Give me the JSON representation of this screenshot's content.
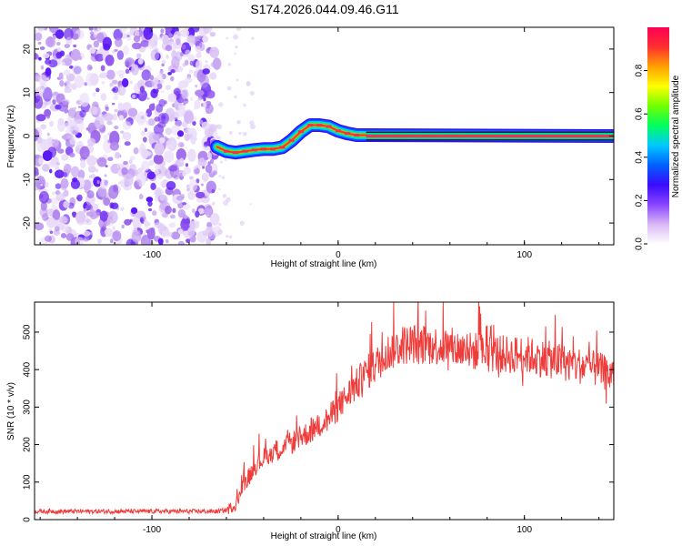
{
  "title": "S174.2026.044.09.46.G11",
  "chart_data": [
    {
      "type": "heatmap",
      "name": "spectrogram",
      "xlabel": "Height of straight line (km)",
      "ylabel": "Frequency (Hz)",
      "xlim": [
        -163,
        148
      ],
      "ylim": [
        -25,
        25
      ],
      "xticks": [
        -100,
        0,
        100
      ],
      "yticks": [
        -20,
        -10,
        0,
        10,
        20
      ],
      "noise_region_x": [
        -163,
        -65
      ],
      "ridge": {
        "x": [
          -65,
          -60,
          -55,
          -50,
          -45,
          -40,
          -35,
          -30,
          -25,
          -20,
          -15,
          -10,
          -5,
          0,
          5,
          10,
          15,
          148
        ],
        "y": [
          -2.5,
          -3.5,
          -3.8,
          -3.5,
          -3.2,
          -3.0,
          -3.0,
          -2.6,
          -1.0,
          1.0,
          2.5,
          2.5,
          2.2,
          1.2,
          0.6,
          0.2,
          0.2,
          0.0
        ]
      },
      "colorbar": {
        "label": "Normalized spectral amplitude",
        "range": [
          0.0,
          1.0
        ],
        "ticks": [
          "0.0",
          "0.2",
          "0.4",
          "0.6",
          "0.8"
        ],
        "colors": [
          "#ffffff",
          "#d9b7f5",
          "#8844ff",
          "#3a0bff",
          "#0060ff",
          "#00c8ff",
          "#00ff60",
          "#70ff00",
          "#ffff00",
          "#ffa000",
          "#ff3030",
          "#ff0055"
        ]
      }
    },
    {
      "type": "line",
      "name": "snr",
      "xlabel": "Height of straight line (km)",
      "ylabel": "SNR (10 * v/v)",
      "xlim": [
        -163,
        148
      ],
      "ylim": [
        0,
        580
      ],
      "xticks": [
        -100,
        0,
        100
      ],
      "yticks": [
        0,
        100,
        200,
        300,
        400,
        500
      ],
      "color": "#ef3b39",
      "series": [
        {
          "name": "SNR",
          "x": [
            -163,
            -140,
            -120,
            -100,
            -80,
            -65,
            -60,
            -55,
            -50,
            -45,
            -40,
            -35,
            -30,
            -25,
            -20,
            -15,
            -10,
            -5,
            0,
            5,
            10,
            15,
            20,
            25,
            30,
            35,
            40,
            50,
            60,
            70,
            80,
            90,
            100,
            110,
            120,
            130,
            140,
            148
          ],
          "values": [
            22,
            22,
            22,
            22,
            22,
            22,
            25,
            40,
            100,
            140,
            165,
            180,
            190,
            205,
            220,
            235,
            250,
            270,
            300,
            330,
            360,
            390,
            410,
            440,
            455,
            465,
            470,
            465,
            460,
            450,
            445,
            440,
            440,
            430,
            420,
            410,
            400,
            380
          ]
        }
      ]
    }
  ]
}
